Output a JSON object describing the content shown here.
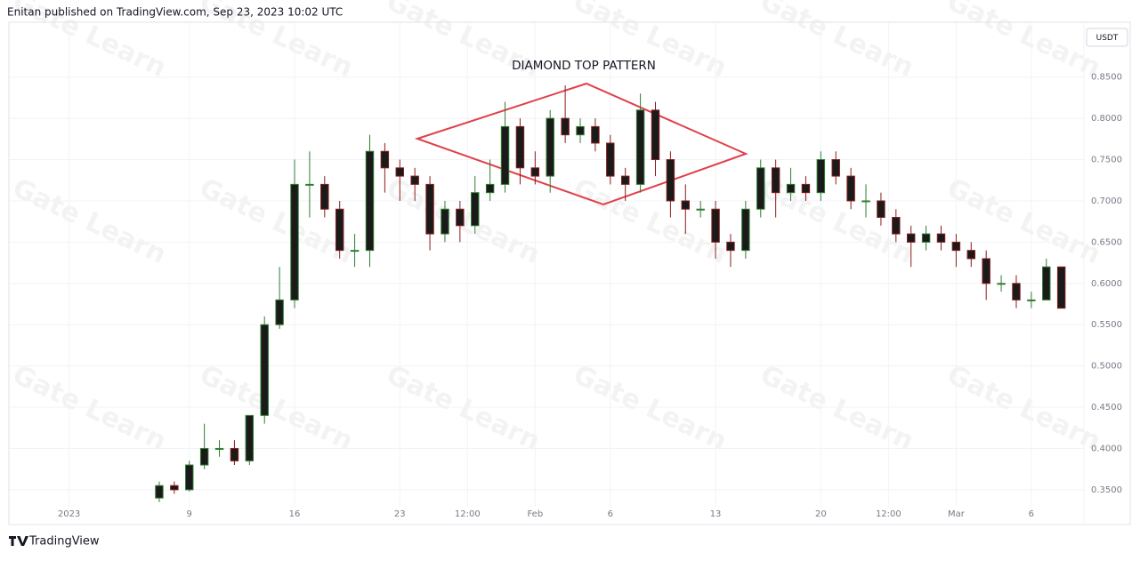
{
  "header": {
    "publisher": "Enitan published on TradingView.com, Sep 23, 2023 10:02 UTC"
  },
  "footer": {
    "brand": "TradingView"
  },
  "watermark": "Gate Learn",
  "chart_data": {
    "type": "candlestick",
    "annotation": "DIAMOND TOP PATTERN",
    "unit_label": "USDT",
    "up_color": "#2e7d32",
    "down_color": "#8b1c1c",
    "body_color": "#1a1a1a",
    "grid": true,
    "x": [
      7,
      8,
      9,
      10,
      11,
      12,
      13,
      14,
      15,
      16,
      17,
      18,
      19,
      20,
      21,
      22,
      23,
      24,
      25,
      26,
      27,
      28,
      29,
      30,
      31,
      32,
      33,
      34,
      35,
      36,
      37,
      38,
      39,
      40,
      41,
      42,
      43,
      44,
      45,
      46,
      47,
      48,
      49,
      50,
      51,
      52,
      53,
      54,
      55,
      56,
      57,
      58,
      59,
      60,
      61,
      62,
      63,
      64,
      65,
      66,
      67
    ],
    "open": [
      0.34,
      0.355,
      0.35,
      0.38,
      0.4,
      0.4,
      0.385,
      0.44,
      0.55,
      0.58,
      0.72,
      0.72,
      0.69,
      0.64,
      0.64,
      0.76,
      0.74,
      0.73,
      0.72,
      0.66,
      0.69,
      0.67,
      0.71,
      0.72,
      0.79,
      0.74,
      0.73,
      0.8,
      0.78,
      0.79,
      0.77,
      0.73,
      0.72,
      0.81,
      0.75,
      0.7,
      0.69,
      0.69,
      0.65,
      0.64,
      0.69,
      0.74,
      0.71,
      0.72,
      0.71,
      0.75,
      0.73,
      0.7,
      0.7,
      0.68,
      0.66,
      0.65,
      0.66,
      0.65,
      0.64,
      0.63,
      0.6,
      0.6,
      0.58,
      0.58,
      0.62
    ],
    "high": [
      0.36,
      0.36,
      0.385,
      0.43,
      0.41,
      0.41,
      0.44,
      0.56,
      0.62,
      0.75,
      0.76,
      0.73,
      0.7,
      0.66,
      0.78,
      0.77,
      0.75,
      0.74,
      0.73,
      0.7,
      0.7,
      0.73,
      0.75,
      0.82,
      0.8,
      0.76,
      0.81,
      0.84,
      0.8,
      0.8,
      0.78,
      0.74,
      0.83,
      0.82,
      0.76,
      0.72,
      0.7,
      0.7,
      0.66,
      0.7,
      0.75,
      0.75,
      0.74,
      0.73,
      0.76,
      0.76,
      0.74,
      0.72,
      0.71,
      0.69,
      0.67,
      0.67,
      0.67,
      0.66,
      0.65,
      0.64,
      0.61,
      0.61,
      0.59,
      0.63,
      0.62
    ],
    "low": [
      0.335,
      0.345,
      0.348,
      0.375,
      0.39,
      0.38,
      0.38,
      0.43,
      0.545,
      0.57,
      0.68,
      0.68,
      0.63,
      0.62,
      0.62,
      0.71,
      0.7,
      0.7,
      0.64,
      0.65,
      0.65,
      0.66,
      0.7,
      0.71,
      0.72,
      0.72,
      0.71,
      0.77,
      0.77,
      0.76,
      0.72,
      0.7,
      0.71,
      0.73,
      0.68,
      0.66,
      0.68,
      0.63,
      0.62,
      0.63,
      0.68,
      0.68,
      0.7,
      0.7,
      0.7,
      0.72,
      0.69,
      0.68,
      0.67,
      0.65,
      0.62,
      0.64,
      0.64,
      0.62,
      0.62,
      0.58,
      0.59,
      0.57,
      0.57,
      0.58,
      0.57
    ],
    "close": [
      0.355,
      0.35,
      0.38,
      0.4,
      0.4,
      0.385,
      0.44,
      0.55,
      0.58,
      0.72,
      0.72,
      0.69,
      0.64,
      0.64,
      0.76,
      0.74,
      0.73,
      0.72,
      0.66,
      0.69,
      0.67,
      0.71,
      0.72,
      0.79,
      0.74,
      0.73,
      0.8,
      0.78,
      0.79,
      0.77,
      0.73,
      0.72,
      0.81,
      0.75,
      0.7,
      0.69,
      0.69,
      0.65,
      0.64,
      0.69,
      0.74,
      0.71,
      0.72,
      0.71,
      0.75,
      0.73,
      0.7,
      0.7,
      0.68,
      0.66,
      0.65,
      0.66,
      0.65,
      0.64,
      0.63,
      0.6,
      0.6,
      0.58,
      0.58,
      0.62,
      0.57
    ],
    "xlim": [
      -3,
      68.5
    ],
    "xticks": [
      {
        "value": 1,
        "label": "2023"
      },
      9,
      16,
      23,
      {
        "value": 27.5,
        "label": "12:00"
      },
      {
        "value": 32,
        "label": "Feb"
      },
      {
        "value": 37,
        "label": "6"
      },
      {
        "value": 44,
        "label": "13"
      },
      {
        "value": 51,
        "label": "20"
      },
      {
        "value": 55.5,
        "label": "12:00"
      },
      {
        "value": 60,
        "label": "Mar"
      },
      {
        "value": 65,
        "label": "6"
      }
    ],
    "ylim": [
      0.31,
      0.91
    ],
    "yticks": [
      {
        "value": 0.35,
        "label": "0.3500"
      },
      {
        "value": 0.4,
        "label": "0.4000"
      },
      {
        "value": 0.45,
        "label": "0.4500"
      },
      {
        "value": 0.5,
        "label": "0.5000"
      },
      {
        "value": 0.55,
        "label": "0.5500"
      },
      {
        "value": 0.6,
        "label": "0.6000"
      },
      {
        "value": 0.65,
        "label": "0.6500"
      },
      {
        "value": 0.7,
        "label": "0.7000"
      },
      {
        "value": 0.75,
        "label": "0.7500"
      },
      {
        "value": 0.8,
        "label": "0.8000"
      },
      {
        "value": 0.85,
        "label": "0.8500"
      }
    ]
  }
}
